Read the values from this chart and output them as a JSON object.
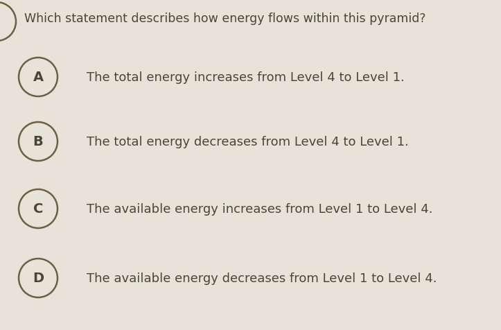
{
  "question": "Which statement describes how energy flows within this pyramid?",
  "options": [
    {
      "letter": "A",
      "text": "The total energy increases from Level 4 to Level 1."
    },
    {
      "letter": "B",
      "text": "The total energy decreases from Level 4 to Level 1."
    },
    {
      "letter": "C",
      "text": "The available energy increases from Level 1 to Level 4."
    },
    {
      "letter": "D",
      "text": "The available energy decreases from Level 1 to Level 4."
    }
  ],
  "background_color": "#e8e3d8",
  "text_color": "#4a4535",
  "circle_edge_color": "#6b6045",
  "circle_face_color": "#e8e3d8",
  "question_fontsize": 12.5,
  "option_fontsize": 13.0,
  "letter_fontsize": 14,
  "fig_width": 7.23,
  "fig_height": 4.77,
  "dpi": 100
}
